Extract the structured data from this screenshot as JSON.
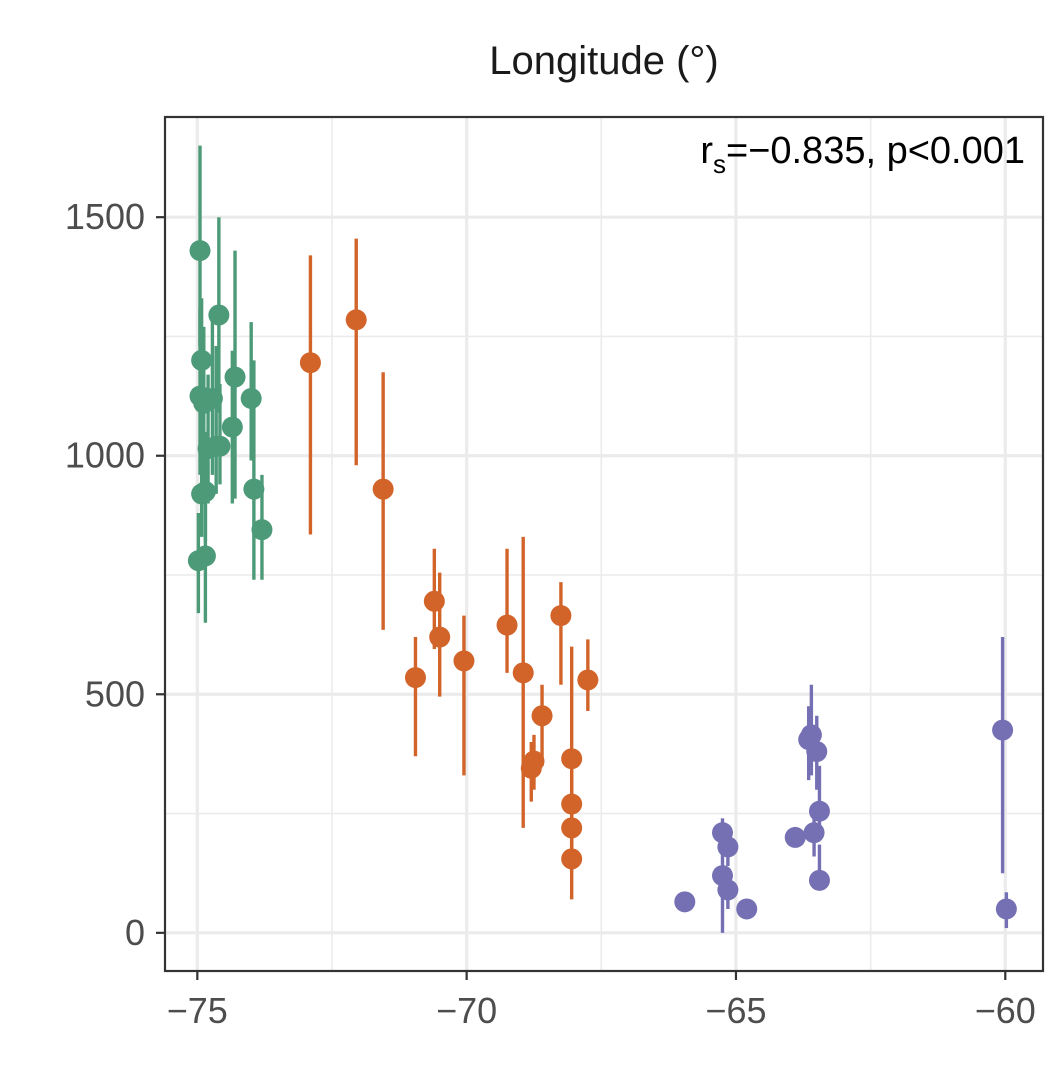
{
  "chart_data": {
    "type": "scatter",
    "title": "Longitude (°)",
    "xlabel": "",
    "ylabel": "",
    "annotation": {
      "base": "r",
      "subscript": "s",
      "text": "=−0.835, p<0.001"
    },
    "xlim": [
      -75.6,
      -59.3
    ],
    "ylim": [
      -80,
      1710
    ],
    "x_ticks": [
      -75,
      -70,
      -65,
      -60
    ],
    "x_tick_labels": [
      "−75",
      "−70",
      "−65",
      "−60"
    ],
    "x_minor_ticks": [
      -72.5,
      -67.5,
      -62.5
    ],
    "y_ticks": [
      0,
      500,
      1000,
      1500
    ],
    "y_tick_labels": [
      "0",
      "500",
      "1000",
      "1500"
    ],
    "y_minor_ticks": [
      250,
      750,
      1250
    ],
    "grid": true,
    "series": [
      {
        "color": "#4c9a78",
        "points": [
          {
            "x": -74.95,
            "y": 1430,
            "lo": 1230,
            "hi": 1650
          },
          {
            "x": -74.92,
            "y": 1200,
            "lo": 1000,
            "hi": 1330
          },
          {
            "x": -74.95,
            "y": 1125,
            "lo": 960,
            "hi": 1310
          },
          {
            "x": -74.88,
            "y": 1110,
            "lo": 940,
            "hi": 1270
          },
          {
            "x": -74.72,
            "y": 1120,
            "lo": 960,
            "hi": 1300
          },
          {
            "x": -74.6,
            "y": 1295,
            "lo": 1090,
            "hi": 1500
          },
          {
            "x": -74.65,
            "y": 1020,
            "lo": 920,
            "hi": 1230
          },
          {
            "x": -74.8,
            "y": 1015,
            "lo": 900,
            "hi": 1170
          },
          {
            "x": -74.58,
            "y": 1020,
            "lo": 940,
            "hi": 1150
          },
          {
            "x": -74.3,
            "y": 1165,
            "lo": 910,
            "hi": 1430
          },
          {
            "x": -74.35,
            "y": 1060,
            "lo": 900,
            "hi": 1220
          },
          {
            "x": -74.0,
            "y": 1120,
            "lo": 990,
            "hi": 1280
          },
          {
            "x": -73.95,
            "y": 930,
            "lo": 740,
            "hi": 1200
          },
          {
            "x": -73.8,
            "y": 845,
            "lo": 740,
            "hi": 960
          },
          {
            "x": -74.92,
            "y": 920,
            "lo": 830,
            "hi": 1010
          },
          {
            "x": -74.85,
            "y": 925,
            "lo": 820,
            "hi": 1050
          },
          {
            "x": -74.98,
            "y": 780,
            "lo": 670,
            "hi": 880
          },
          {
            "x": -74.85,
            "y": 790,
            "lo": 650,
            "hi": 960
          }
        ]
      },
      {
        "color": "#d2642a",
        "points": [
          {
            "x": -72.9,
            "y": 1195,
            "lo": 835,
            "hi": 1420
          },
          {
            "x": -72.05,
            "y": 1285,
            "lo": 980,
            "hi": 1455
          },
          {
            "x": -71.55,
            "y": 930,
            "lo": 635,
            "hi": 1175
          },
          {
            "x": -70.6,
            "y": 695,
            "lo": 595,
            "hi": 805
          },
          {
            "x": -70.5,
            "y": 620,
            "lo": 495,
            "hi": 755
          },
          {
            "x": -70.05,
            "y": 570,
            "lo": 330,
            "hi": 665
          },
          {
            "x": -70.95,
            "y": 535,
            "lo": 370,
            "hi": 620
          },
          {
            "x": -69.25,
            "y": 645,
            "lo": 545,
            "hi": 805
          },
          {
            "x": -68.95,
            "y": 545,
            "lo": 220,
            "hi": 830
          },
          {
            "x": -68.8,
            "y": 345,
            "lo": 275,
            "hi": 400
          },
          {
            "x": -68.75,
            "y": 360,
            "lo": 300,
            "hi": 415
          },
          {
            "x": -68.6,
            "y": 455,
            "lo": 350,
            "hi": 520
          },
          {
            "x": -68.25,
            "y": 665,
            "lo": 520,
            "hi": 735
          },
          {
            "x": -67.75,
            "y": 530,
            "lo": 465,
            "hi": 615
          },
          {
            "x": -68.05,
            "y": 365,
            "lo": 160,
            "hi": 600
          },
          {
            "x": -68.05,
            "y": 270,
            "lo": 160,
            "hi": 360
          },
          {
            "x": -68.05,
            "y": 220,
            "lo": 130,
            "hi": 300
          },
          {
            "x": -68.05,
            "y": 155,
            "lo": 70,
            "hi": 240
          }
        ]
      },
      {
        "color": "#7570b3",
        "points": [
          {
            "x": -65.95,
            "y": 65,
            "lo": 50,
            "hi": 80
          },
          {
            "x": -65.25,
            "y": 210,
            "lo": 170,
            "hi": 240
          },
          {
            "x": -65.15,
            "y": 180,
            "lo": 140,
            "hi": 215
          },
          {
            "x": -65.25,
            "y": 120,
            "lo": 0,
            "hi": 220
          },
          {
            "x": -65.15,
            "y": 90,
            "lo": 50,
            "hi": 130
          },
          {
            "x": -64.8,
            "y": 50,
            "lo": 40,
            "hi": 62
          },
          {
            "x": -63.9,
            "y": 200,
            "lo": 185,
            "hi": 215
          },
          {
            "x": -63.65,
            "y": 405,
            "lo": 320,
            "hi": 475
          },
          {
            "x": -63.6,
            "y": 415,
            "lo": 330,
            "hi": 520
          },
          {
            "x": -63.5,
            "y": 380,
            "lo": 300,
            "hi": 455
          },
          {
            "x": -63.55,
            "y": 210,
            "lo": 160,
            "hi": 260
          },
          {
            "x": -63.45,
            "y": 255,
            "lo": 200,
            "hi": 350
          },
          {
            "x": -63.45,
            "y": 110,
            "lo": 95,
            "hi": 185
          },
          {
            "x": -60.05,
            "y": 425,
            "lo": 125,
            "hi": 620
          },
          {
            "x": -59.98,
            "y": 50,
            "lo": 10,
            "hi": 85
          }
        ]
      }
    ]
  }
}
